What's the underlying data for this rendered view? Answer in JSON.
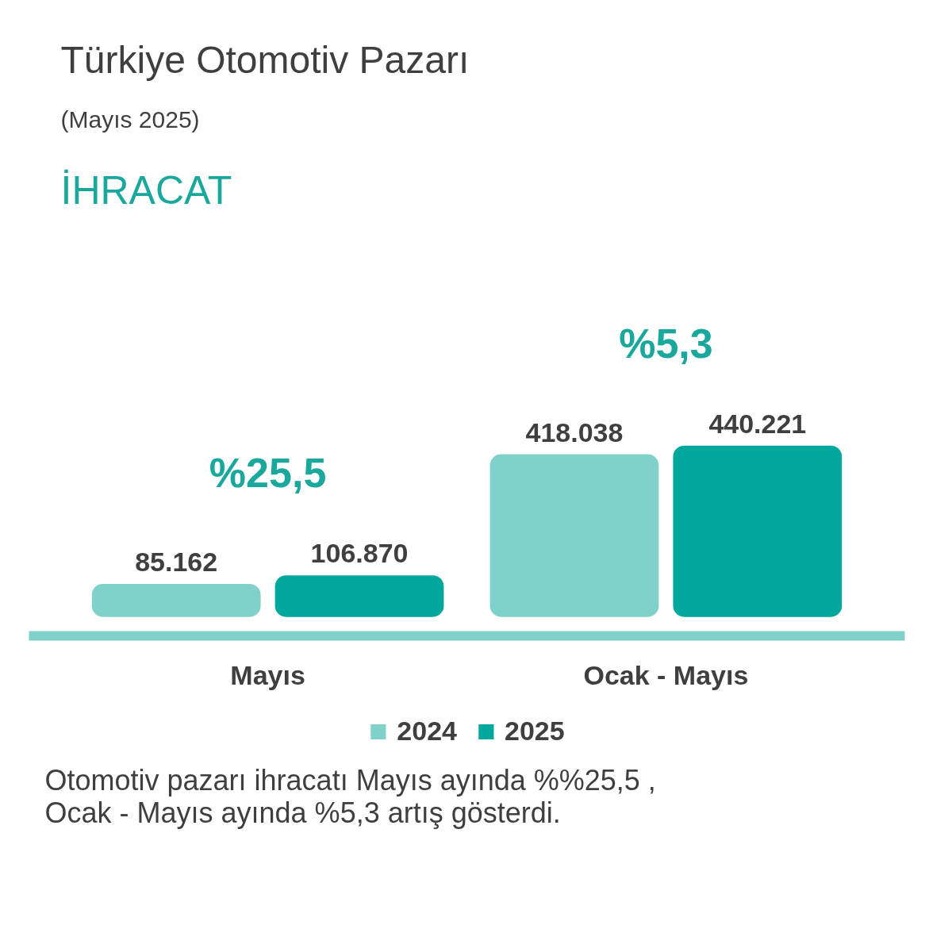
{
  "chart_data": {
    "type": "bar",
    "title": "Türkiye Otomotiv Pazarı",
    "subtitle": "(Mayıs 2025)",
    "categories": [
      "Mayıs",
      "Ocak - Mayıs"
    ],
    "series": [
      {
        "name": "2024",
        "color": "#81d1cb",
        "values": [
          85162,
          418038
        ],
        "value_labels": [
          "85.162",
          "418.038"
        ]
      },
      {
        "name": "2025",
        "color": "#00a79d",
        "values": [
          106870,
          440221
        ],
        "value_labels": [
          "106.870",
          "440.221"
        ]
      }
    ],
    "annotations": [
      "İHRACAT",
      "%25,5",
      "%5,3",
      "Otomotiv pazarı ihracatı Mayıs ayında %%25,5 , Ocak - Mayıs ayında %5,3 artış gösterdi."
    ],
    "legend": "bottom",
    "tick_labels": "x"
  }
}
